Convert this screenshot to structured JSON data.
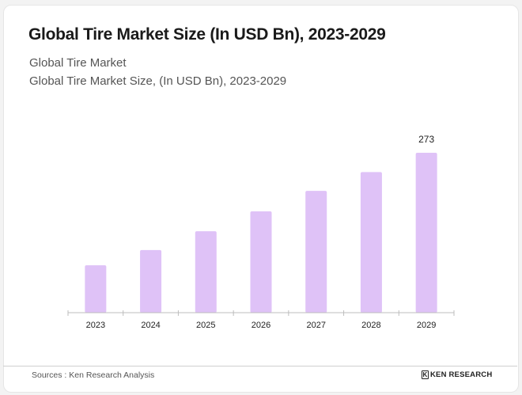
{
  "header": {
    "title": "Global Tire Market Size (In USD Bn), 2023-2029",
    "subtitle_line1": "Global Tire Market",
    "subtitle_line2": "Global Tire Market Size, (In USD Bn), 2023-2029"
  },
  "footer": {
    "source": "Sources : Ken Research Analysis",
    "logo_text": "KEN RESEARCH",
    "logo_icon": "ken-research-logo-icon"
  },
  "chart_data": {
    "type": "bar",
    "title": "Global Tire Market Size (In USD Bn), 2023-2029",
    "xlabel": "",
    "ylabel": "",
    "categories": [
      "2023",
      "2024",
      "2025",
      "2026",
      "2027",
      "2028",
      "2029"
    ],
    "values": [
      81,
      107,
      139,
      173,
      208,
      240,
      273
    ],
    "data_labels": [
      null,
      null,
      null,
      null,
      null,
      null,
      "273"
    ],
    "ylim": [
      0,
      273
    ],
    "grid": false,
    "legend": "none",
    "bar_color": "#dfc2f7",
    "axis_color": "#bdbdbd"
  }
}
